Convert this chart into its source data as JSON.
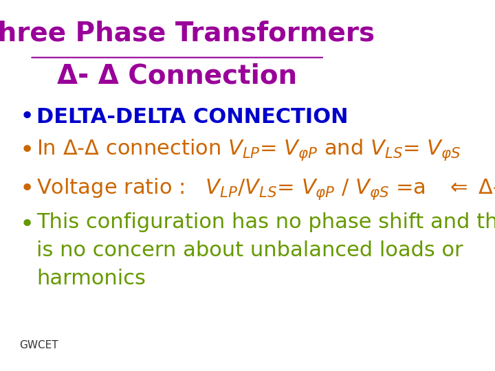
{
  "background_color": "#ffffff",
  "title_line1": "Three Phase Transformers",
  "title_line2": "Δ- Δ Connection",
  "title_color": "#990099",
  "title_fontsize": 28,
  "bullet1_color": "#0000cc",
  "bullet1_text": "DELTA-DELTA CONNECTION",
  "bullet1_fontsize": 22,
  "bullet2_color": "#cc6600",
  "bullet2_fontsize": 22,
  "bullet3_color": "#cc6600",
  "bullet3_fontsize": 22,
  "bullet4_color": "#669900",
  "bullet4_fontsize": 22,
  "footer_text": "GWCET",
  "footer_color": "#333333",
  "footer_fontsize": 11
}
